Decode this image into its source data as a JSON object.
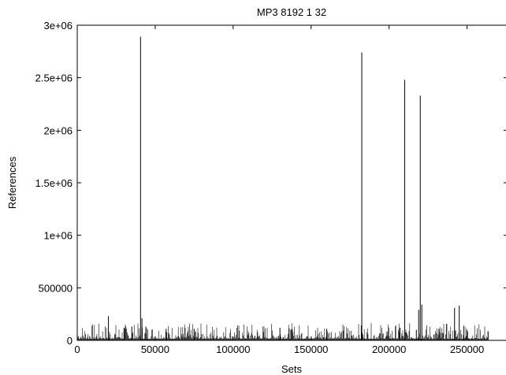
{
  "chart_data": {
    "type": "bar",
    "title": "MP3 8192 1 32",
    "xlabel": "Sets",
    "ylabel": "References",
    "xlim": [
      0,
      276000
    ],
    "ylim": [
      0,
      3000000
    ],
    "x_ticks": [
      {
        "value": 0,
        "label": "0"
      },
      {
        "value": 50000,
        "label": "50000"
      },
      {
        "value": 100000,
        "label": "100000"
      },
      {
        "value": 150000,
        "label": "150000"
      },
      {
        "value": 200000,
        "label": "200000"
      },
      {
        "value": 250000,
        "label": "250000"
      }
    ],
    "y_ticks": [
      {
        "value": 0,
        "label": "0"
      },
      {
        "value": 500000,
        "label": "500000"
      },
      {
        "value": 1000000,
        "label": "1e+06"
      },
      {
        "value": 1500000,
        "label": "1.5e+06"
      },
      {
        "value": 2000000,
        "label": "2e+06"
      },
      {
        "value": 2500000,
        "label": "2.5e+06"
      },
      {
        "value": 3000000,
        "label": "3e+06"
      }
    ],
    "grid": false,
    "legend": "none",
    "bar_color": "#000000",
    "series": [
      {
        "x": [
          20000,
          40600,
          41500,
          44000,
          182500,
          210000,
          217500,
          219000,
          220000,
          221000,
          242000,
          245000,
          248000,
          30000,
          35000,
          57000,
          75000,
          130000,
          137000,
          160000,
          207000,
          232000,
          250000
        ],
        "values": [
          230000,
          2890000,
          210000,
          130000,
          2740000,
          2480000,
          100000,
          290000,
          2330000,
          340000,
          310000,
          330000,
          140000,
          120000,
          130000,
          110000,
          110000,
          120000,
          100000,
          110000,
          120000,
          110000,
          100000
        ]
      }
    ]
  }
}
